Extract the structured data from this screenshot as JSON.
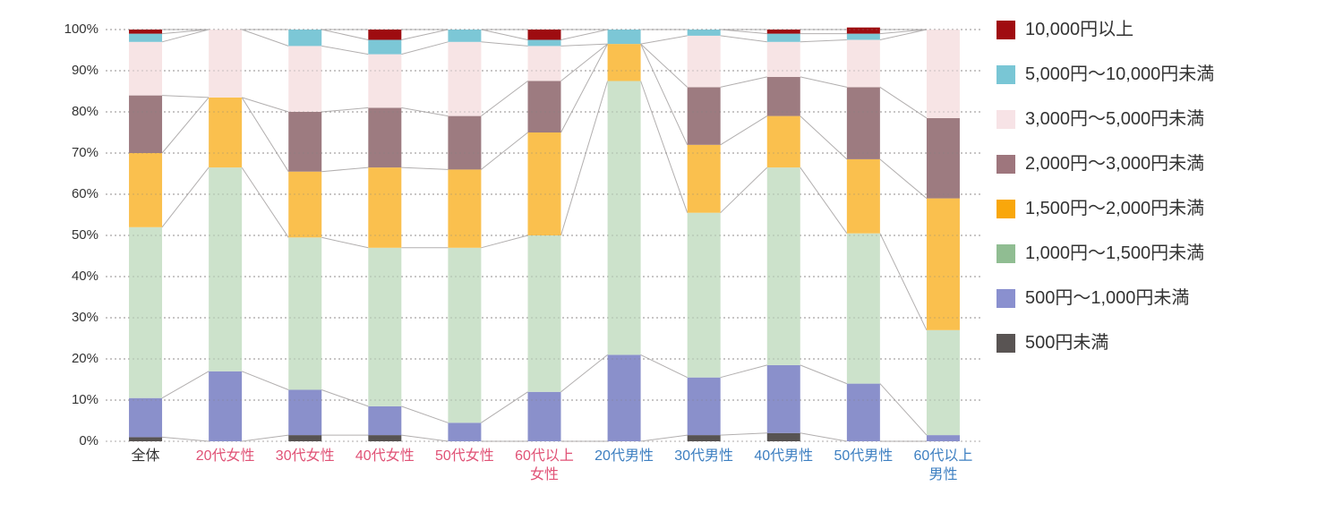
{
  "chart_data": {
    "type": "bar",
    "subtype": "stacked-100-percent",
    "title": "",
    "xlabel": "",
    "ylabel": "",
    "ylim": [
      0,
      100
    ],
    "y_ticks": [
      "0%",
      "10%",
      "20%",
      "30%",
      "40%",
      "50%",
      "60%",
      "70%",
      "80%",
      "90%",
      "100%"
    ],
    "grid": "dotted-horizontal-every-10pct",
    "legend_position": "right",
    "connector_lines": true,
    "categories": [
      "全体",
      "20代女性",
      "30代女性",
      "40代女性",
      "50代女性",
      "60代以上\n女性",
      "20代男性",
      "30代男性",
      "40代男性",
      "50代男性",
      "60代以上\n男性"
    ],
    "category_label_colors": [
      "#333333",
      "#e05276",
      "#e05276",
      "#e05276",
      "#e05276",
      "#e05276",
      "#3d7fc1",
      "#3d7fc1",
      "#3d7fc1",
      "#3d7fc1",
      "#3d7fc1"
    ],
    "series_note": "series listed bottom-to-top of stack; values are percent of each category; legend shows reverse order",
    "series": [
      {
        "name": "500円未満",
        "legend_color": "#595453",
        "bar_color": "#575352",
        "values": [
          1,
          0,
          1.5,
          1.5,
          0,
          0,
          0,
          1.5,
          2,
          0,
          0
        ]
      },
      {
        "name": "500円～1,000円未満",
        "legend_color": "#8a90cf",
        "bar_color": "#8a90cb",
        "values": [
          9.5,
          17,
          11,
          7,
          4.5,
          12,
          21,
          14,
          16.5,
          14,
          1.5
        ]
      },
      {
        "name": "1,000円～1,500円未満",
        "legend_color": "#90bd92",
        "bar_color": "#cce2cb",
        "values": [
          41.5,
          49.5,
          37,
          38.5,
          42.5,
          38,
          66.5,
          40,
          48,
          36.5,
          25.5
        ]
      },
      {
        "name": "1,500円～2,000円未満",
        "legend_color": "#f9a70b",
        "bar_color": "#fac04e",
        "values": [
          18,
          17,
          16,
          19.5,
          19,
          25,
          9,
          16.5,
          12.5,
          18,
          32
        ]
      },
      {
        "name": "2,000円～3,000円未満",
        "legend_color": "#9e767d",
        "bar_color": "#9d7b80",
        "values": [
          14,
          0,
          14.5,
          14.5,
          13,
          12.5,
          0,
          14,
          9.5,
          17.5,
          19.5
        ]
      },
      {
        "name": "3,000円～5,000円未満",
        "legend_color": "#f7e3e6",
        "bar_color": "#f7e4e5",
        "values": [
          13,
          16.5,
          16,
          13,
          18,
          8.5,
          0,
          12.5,
          8.5,
          11.5,
          21.5
        ]
      },
      {
        "name": "5,000円～10,000円未満",
        "legend_color": "#79c6d5",
        "bar_color": "#7cc7d6",
        "values": [
          2,
          0,
          4,
          3.5,
          3,
          1.5,
          3.5,
          1.5,
          2,
          1.5,
          0
        ]
      },
      {
        "name": "10,000円以上",
        "legend_color": "#a00c11",
        "bar_color": "#9e0c10",
        "values": [
          1,
          0,
          0,
          2.5,
          0,
          2.5,
          0,
          0,
          1,
          1.5,
          0
        ]
      }
    ],
    "colors_misc": {
      "gridline": "#c9c6c6",
      "connector_line": "#b2afaf",
      "tick_text": "#333333",
      "female_label": "#e05276",
      "male_label": "#3d7fc1",
      "overall_label": "#333333"
    }
  }
}
